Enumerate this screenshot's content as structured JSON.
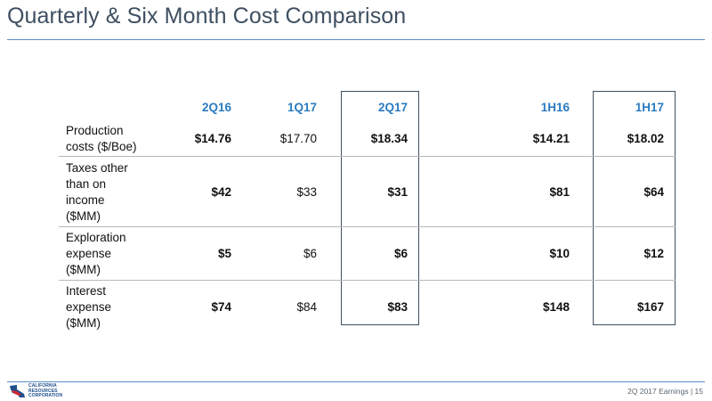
{
  "title": "Quarterly & Six Month Cost Comparison",
  "columns": [
    "2Q16",
    "1Q17",
    "2Q17",
    "1H16",
    "1H17"
  ],
  "rows": [
    {
      "label_lines": [
        "Production",
        "costs ($/Boe)"
      ],
      "values": [
        "$14.76",
        "$17.70",
        "$18.34",
        "$14.21",
        "$18.02"
      ]
    },
    {
      "label_lines": [
        "Taxes other",
        "than on",
        "income",
        "($MM)"
      ],
      "values": [
        "$42",
        "$33",
        "$31",
        "$81",
        "$64"
      ]
    },
    {
      "label_lines": [
        "Exploration",
        "expense",
        "($MM)"
      ],
      "values": [
        "$5",
        "$6",
        "$6",
        "$10",
        "$12"
      ]
    },
    {
      "label_lines": [
        "Interest",
        "expense",
        "($MM)"
      ],
      "values": [
        "$74",
        "$84",
        "$83",
        "$148",
        "$167"
      ]
    }
  ],
  "footer": {
    "text": "2Q 2017 Earnings | 15",
    "logo_lines": [
      "CALIFORNIA",
      "RESOURCES",
      "CORPORATION"
    ]
  },
  "colors": {
    "header": "#2b7bc0",
    "title": "#3f4f61",
    "rule": "#5b8fc7"
  }
}
